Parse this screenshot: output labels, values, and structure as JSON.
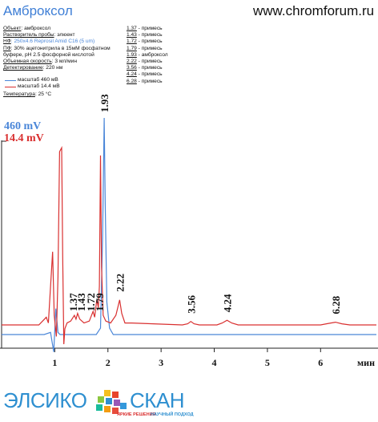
{
  "title": "Амброксол",
  "site": "www.chromforum.ru",
  "conditions": [
    {
      "key": "Объект",
      "value": ": амброксол",
      "blue": false
    },
    {
      "key": "Растворитель пробы",
      "value": ": элюент",
      "blue": false
    },
    {
      "key": "НФ",
      "value": ": 250x4.6 Reprosil Amid C16  (5 um)",
      "blue": true
    },
    {
      "key": "ПФ",
      "value": ": 30% ацетонитрила в 15мМ фосфатном",
      "blue": false
    },
    {
      "key": "",
      "value": "буфере, pH 2.5 фосфорной кислотой",
      "blue": false
    },
    {
      "key": "Объемная скорость",
      "value": ": 3 мл/мин",
      "blue": false
    },
    {
      "key": "Детектирование",
      "value": ": 220 нм",
      "blue": false
    }
  ],
  "legend": [
    {
      "label": "масштаб 460 мВ",
      "color": "#4a86d8"
    },
    {
      "label": "масштаб 14.4 мВ",
      "color": "#d93030"
    }
  ],
  "temperature": {
    "key": "Температура",
    "value": ": 25 °С"
  },
  "peak_list": [
    {
      "rt": "1.37",
      "name": " - примесь"
    },
    {
      "rt": "1.43",
      "name": " - примесь"
    },
    {
      "rt": "1.72",
      "name": " - примесь"
    },
    {
      "rt": "1.79",
      "name": " - примесь"
    },
    {
      "rt": "1.93",
      "name": " - амброксол"
    },
    {
      "rt": "2.22",
      "name": " - примесь"
    },
    {
      "rt": "3.56",
      "name": " - примесь"
    },
    {
      "rt": "4.24",
      "name": " - примесь"
    },
    {
      "rt": "6.28",
      "name": " - примесь"
    }
  ],
  "scale_blue": "460 mV",
  "scale_red": "14.4 mV",
  "logo": {
    "word1": "ЭЛСИКО",
    "word2": "СКАН",
    "tagline_a": "ЯРКИЕ РЕШЕНИЯ",
    "tagline_b": "НАУЧНЫЙ ПОДХОД"
  },
  "chart_data": {
    "type": "line",
    "xlabel": "мин",
    "xlim": [
      0,
      7.05
    ],
    "x_ticks": [
      1,
      2,
      3,
      4,
      5,
      6
    ],
    "series": [
      {
        "name": "масштаб 460 мВ",
        "color": "#4a86d8",
        "baseline": 0,
        "points": [
          [
            0,
            0
          ],
          [
            0.8,
            0
          ],
          [
            0.92,
            0.01
          ],
          [
            0.98,
            -0.08
          ],
          [
            1.02,
            0.12
          ],
          [
            1.06,
            0.01
          ],
          [
            1.1,
            0
          ],
          [
            1.78,
            0
          ],
          [
            1.86,
            0.03
          ],
          [
            1.9,
            0.45
          ],
          [
            1.93,
            1.0
          ],
          [
            1.95,
            0.6
          ],
          [
            1.98,
            0.15
          ],
          [
            2.03,
            0.03
          ],
          [
            2.1,
            0
          ],
          [
            7.05,
            0
          ]
        ]
      },
      {
        "name": "масштаб 14.4 мВ",
        "color": "#d93030",
        "baseline": 0,
        "points": [
          [
            0,
            0
          ],
          [
            0.7,
            0
          ],
          [
            0.84,
            0.04
          ],
          [
            0.88,
            0.01
          ],
          [
            0.96,
            0.38
          ],
          [
            0.99,
            0.05
          ],
          [
            1.03,
            -0.06
          ],
          [
            1.06,
            0.25
          ],
          [
            1.09,
            0.9
          ],
          [
            1.13,
            0.92
          ],
          [
            1.15,
            0.35
          ],
          [
            1.17,
            -0.1
          ],
          [
            1.19,
            -0.02
          ],
          [
            1.23,
            0.01
          ],
          [
            1.3,
            0.02
          ],
          [
            1.37,
            0.05
          ],
          [
            1.4,
            0.03
          ],
          [
            1.43,
            0.06
          ],
          [
            1.47,
            0.03
          ],
          [
            1.55,
            0.01
          ],
          [
            1.65,
            0.02
          ],
          [
            1.72,
            0.07
          ],
          [
            1.75,
            0.04
          ],
          [
            1.79,
            0.13
          ],
          [
            1.82,
            0.09
          ],
          [
            1.84,
            0.2
          ],
          [
            1.86,
            0.88
          ],
          [
            1.88,
            0.3
          ],
          [
            1.91,
            0.05
          ],
          [
            1.96,
            0.02
          ],
          [
            2.05,
            0.01
          ],
          [
            2.15,
            0.05
          ],
          [
            2.22,
            0.13
          ],
          [
            2.26,
            0.06
          ],
          [
            2.32,
            0.01
          ],
          [
            2.45,
            0.01
          ],
          [
            3.4,
            0.0
          ],
          [
            3.5,
            0.006
          ],
          [
            3.56,
            0.018
          ],
          [
            3.62,
            0.006
          ],
          [
            3.72,
            0.0
          ],
          [
            4.05,
            0.0
          ],
          [
            4.15,
            0.01
          ],
          [
            4.24,
            0.024
          ],
          [
            4.33,
            0.01
          ],
          [
            4.45,
            0.0
          ],
          [
            6.0,
            0.0
          ],
          [
            6.15,
            0.008
          ],
          [
            6.28,
            0.014
          ],
          [
            6.4,
            0.006
          ],
          [
            6.55,
            0.0
          ],
          [
            7.05,
            0.0
          ]
        ]
      }
    ],
    "peak_labels": [
      "1.37",
      "1.43",
      "1.72",
      "1.79",
      "1.93",
      "2.22",
      "3.56",
      "4.24",
      "6.28"
    ]
  }
}
